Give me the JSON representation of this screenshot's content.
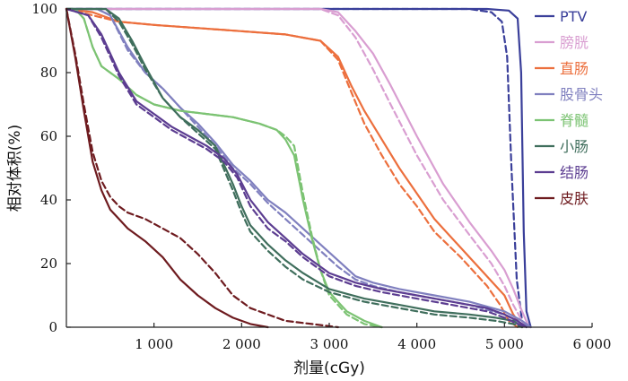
{
  "chart_data": {
    "type": "line",
    "xlabel": "剂量(cGy)",
    "ylabel": "相对体积(%)",
    "xlim": [
      0,
      6000
    ],
    "ylim": [
      0,
      100
    ],
    "xticks": [
      1000,
      2000,
      3000,
      4000,
      5000,
      6000
    ],
    "xtick_labels": [
      "1 000",
      "2 000",
      "3 000",
      "4 000",
      "5 000",
      "6 000"
    ],
    "yticks": [
      0,
      20,
      40,
      60,
      80,
      100
    ],
    "ytick_labels": [
      "0",
      "20",
      "40",
      "60",
      "80",
      "100"
    ],
    "grid": false,
    "legend_position": "right",
    "series": [
      {
        "name": "PTV",
        "color": "#3a3f9a",
        "solid": [
          [
            0,
            100
          ],
          [
            4800,
            100
          ],
          [
            5050,
            99.5
          ],
          [
            5150,
            97
          ],
          [
            5190,
            80
          ],
          [
            5220,
            30
          ],
          [
            5250,
            5
          ],
          [
            5300,
            0
          ]
        ],
        "dashed": [
          [
            0,
            100
          ],
          [
            4600,
            100
          ],
          [
            4850,
            99
          ],
          [
            4970,
            96
          ],
          [
            5030,
            85
          ],
          [
            5080,
            50
          ],
          [
            5140,
            15
          ],
          [
            5200,
            2
          ],
          [
            5250,
            0
          ]
        ]
      },
      {
        "name": "膀胱",
        "color": "#d99ed1",
        "solid": [
          [
            0,
            100
          ],
          [
            2900,
            100
          ],
          [
            3100,
            99
          ],
          [
            3300,
            93
          ],
          [
            3500,
            86
          ],
          [
            3700,
            76
          ],
          [
            4000,
            60
          ],
          [
            4300,
            45
          ],
          [
            4600,
            33
          ],
          [
            4850,
            24
          ],
          [
            5000,
            18
          ],
          [
            5100,
            12
          ],
          [
            5200,
            5
          ],
          [
            5280,
            0
          ]
        ],
        "dashed": [
          [
            0,
            100
          ],
          [
            2900,
            100
          ],
          [
            3100,
            98
          ],
          [
            3300,
            91
          ],
          [
            3500,
            81
          ],
          [
            3700,
            70
          ],
          [
            4000,
            54
          ],
          [
            4300,
            40
          ],
          [
            4600,
            29
          ],
          [
            4850,
            20
          ],
          [
            5000,
            13
          ],
          [
            5100,
            7
          ],
          [
            5200,
            2
          ],
          [
            5250,
            0
          ]
        ]
      },
      {
        "name": "直肠",
        "color": "#ec6f3d",
        "solid": [
          [
            0,
            100
          ],
          [
            300,
            99
          ],
          [
            600,
            96
          ],
          [
            1000,
            95
          ],
          [
            1500,
            94
          ],
          [
            2000,
            93
          ],
          [
            2500,
            92
          ],
          [
            2900,
            90
          ],
          [
            3100,
            85
          ],
          [
            3250,
            76
          ],
          [
            3400,
            68
          ],
          [
            3600,
            59
          ],
          [
            3800,
            50
          ],
          [
            4000,
            42
          ],
          [
            4200,
            34
          ],
          [
            4500,
            25
          ],
          [
            4800,
            16
          ],
          [
            5000,
            10
          ],
          [
            5100,
            4
          ],
          [
            5200,
            0
          ]
        ],
        "dashed": [
          [
            0,
            100
          ],
          [
            300,
            98
          ],
          [
            600,
            96
          ],
          [
            1000,
            95
          ],
          [
            1500,
            94
          ],
          [
            2000,
            93
          ],
          [
            2500,
            92
          ],
          [
            2900,
            90
          ],
          [
            3100,
            84
          ],
          [
            3250,
            74
          ],
          [
            3400,
            64
          ],
          [
            3600,
            54
          ],
          [
            3800,
            45
          ],
          [
            4000,
            38
          ],
          [
            4200,
            30
          ],
          [
            4500,
            22
          ],
          [
            4800,
            13
          ],
          [
            4950,
            7
          ],
          [
            5050,
            2
          ],
          [
            5150,
            0
          ]
        ]
      },
      {
        "name": "股骨头",
        "color": "#8080bf",
        "solid": [
          [
            0,
            100
          ],
          [
            350,
            100
          ],
          [
            500,
            98
          ],
          [
            700,
            88
          ],
          [
            900,
            80
          ],
          [
            1100,
            75
          ],
          [
            1300,
            69
          ],
          [
            1500,
            64
          ],
          [
            1700,
            58
          ],
          [
            1900,
            51
          ],
          [
            2100,
            46
          ],
          [
            2300,
            40
          ],
          [
            2500,
            36
          ],
          [
            2700,
            31
          ],
          [
            2900,
            26
          ],
          [
            3100,
            21
          ],
          [
            3300,
            16
          ],
          [
            3500,
            14
          ],
          [
            3800,
            12
          ],
          [
            4200,
            10
          ],
          [
            4600,
            8
          ],
          [
            5000,
            5
          ],
          [
            5200,
            2
          ],
          [
            5300,
            0
          ]
        ],
        "dashed": [
          [
            0,
            100
          ],
          [
            350,
            100
          ],
          [
            500,
            98
          ],
          [
            700,
            87
          ],
          [
            900,
            80
          ],
          [
            1100,
            75
          ],
          [
            1300,
            69
          ],
          [
            1500,
            63
          ],
          [
            1700,
            57
          ],
          [
            1900,
            50
          ],
          [
            2100,
            45
          ],
          [
            2300,
            39
          ],
          [
            2500,
            34
          ],
          [
            2700,
            29
          ],
          [
            2900,
            24
          ],
          [
            3100,
            19
          ],
          [
            3300,
            15
          ],
          [
            3500,
            13
          ],
          [
            3800,
            11
          ],
          [
            4200,
            9
          ],
          [
            4600,
            7
          ],
          [
            5000,
            4
          ],
          [
            5200,
            1
          ],
          [
            5300,
            0
          ]
        ]
      },
      {
        "name": "脊髓",
        "color": "#7cc373",
        "solid": [
          [
            0,
            100
          ],
          [
            100,
            100
          ],
          [
            200,
            97
          ],
          [
            300,
            88
          ],
          [
            400,
            82
          ],
          [
            600,
            78
          ],
          [
            800,
            73
          ],
          [
            1000,
            70
          ],
          [
            1300,
            68
          ],
          [
            1600,
            67
          ],
          [
            1900,
            66
          ],
          [
            2200,
            64
          ],
          [
            2400,
            62
          ],
          [
            2500,
            59
          ],
          [
            2600,
            54
          ],
          [
            2700,
            40
          ],
          [
            2800,
            28
          ],
          [
            2900,
            18
          ],
          [
            3000,
            11
          ],
          [
            3200,
            5
          ],
          [
            3400,
            2
          ],
          [
            3600,
            0
          ]
        ],
        "dashed": [
          [
            0,
            100
          ],
          [
            100,
            100
          ],
          [
            200,
            97
          ],
          [
            300,
            88
          ],
          [
            400,
            82
          ],
          [
            600,
            78
          ],
          [
            800,
            73
          ],
          [
            1000,
            70
          ],
          [
            1300,
            68
          ],
          [
            1600,
            67
          ],
          [
            1900,
            66
          ],
          [
            2200,
            64
          ],
          [
            2400,
            62
          ],
          [
            2500,
            60
          ],
          [
            2600,
            57
          ],
          [
            2700,
            42
          ],
          [
            2800,
            29
          ],
          [
            2900,
            18
          ],
          [
            3000,
            10
          ],
          [
            3200,
            4
          ],
          [
            3400,
            1
          ],
          [
            3600,
            0
          ]
        ]
      },
      {
        "name": "小肠",
        "color": "#3f6e5c",
        "solid": [
          [
            0,
            100
          ],
          [
            450,
            100
          ],
          [
            600,
            97
          ],
          [
            750,
            90
          ],
          [
            900,
            82
          ],
          [
            1100,
            72
          ],
          [
            1300,
            66
          ],
          [
            1500,
            62
          ],
          [
            1700,
            57
          ],
          [
            1900,
            45
          ],
          [
            2000,
            38
          ],
          [
            2100,
            32
          ],
          [
            2300,
            26
          ],
          [
            2500,
            21
          ],
          [
            2700,
            17
          ],
          [
            3000,
            12
          ],
          [
            3400,
            9
          ],
          [
            3800,
            7
          ],
          [
            4200,
            5
          ],
          [
            4600,
            4
          ],
          [
            4900,
            3
          ],
          [
            5100,
            2
          ],
          [
            5200,
            0
          ]
        ],
        "dashed": [
          [
            0,
            100
          ],
          [
            450,
            100
          ],
          [
            600,
            96
          ],
          [
            750,
            89
          ],
          [
            900,
            81
          ],
          [
            1100,
            72
          ],
          [
            1300,
            66
          ],
          [
            1500,
            61
          ],
          [
            1700,
            56
          ],
          [
            1900,
            43
          ],
          [
            2000,
            36
          ],
          [
            2100,
            30
          ],
          [
            2300,
            24
          ],
          [
            2500,
            19
          ],
          [
            2700,
            15
          ],
          [
            3000,
            11
          ],
          [
            3400,
            8
          ],
          [
            3800,
            6
          ],
          [
            4200,
            4
          ],
          [
            4600,
            3
          ],
          [
            4900,
            2
          ],
          [
            5100,
            1
          ],
          [
            5200,
            0
          ]
        ]
      },
      {
        "name": "结肠",
        "color": "#5c3d91",
        "solid": [
          [
            0,
            100
          ],
          [
            250,
            98
          ],
          [
            400,
            92
          ],
          [
            600,
            80
          ],
          [
            800,
            71
          ],
          [
            1000,
            67
          ],
          [
            1200,
            63
          ],
          [
            1400,
            60
          ],
          [
            1600,
            57
          ],
          [
            1800,
            53
          ],
          [
            1950,
            48
          ],
          [
            2100,
            40
          ],
          [
            2300,
            33
          ],
          [
            2500,
            28
          ],
          [
            2700,
            23
          ],
          [
            3000,
            17
          ],
          [
            3300,
            14
          ],
          [
            3600,
            12
          ],
          [
            4000,
            10
          ],
          [
            4400,
            8
          ],
          [
            4800,
            6
          ],
          [
            5000,
            4
          ],
          [
            5150,
            2
          ],
          [
            5250,
            0
          ]
        ],
        "dashed": [
          [
            0,
            100
          ],
          [
            250,
            98
          ],
          [
            400,
            91
          ],
          [
            600,
            79
          ],
          [
            800,
            70
          ],
          [
            1000,
            66
          ],
          [
            1200,
            62
          ],
          [
            1400,
            59
          ],
          [
            1600,
            56
          ],
          [
            1800,
            52
          ],
          [
            1950,
            47
          ],
          [
            2100,
            38
          ],
          [
            2300,
            31
          ],
          [
            2500,
            27
          ],
          [
            2700,
            22
          ],
          [
            3000,
            16
          ],
          [
            3300,
            13
          ],
          [
            3600,
            11
          ],
          [
            4000,
            9
          ],
          [
            4400,
            7
          ],
          [
            4800,
            5
          ],
          [
            5000,
            3
          ],
          [
            5150,
            1
          ],
          [
            5250,
            0
          ]
        ]
      },
      {
        "name": "皮肤",
        "color": "#6e1b1f",
        "solid": [
          [
            0,
            100
          ],
          [
            100,
            85
          ],
          [
            200,
            68
          ],
          [
            300,
            52
          ],
          [
            400,
            43
          ],
          [
            500,
            37
          ],
          [
            600,
            34
          ],
          [
            700,
            31
          ],
          [
            900,
            27
          ],
          [
            1100,
            22
          ],
          [
            1300,
            15
          ],
          [
            1500,
            10
          ],
          [
            1700,
            6
          ],
          [
            1900,
            3
          ],
          [
            2100,
            1
          ],
          [
            2300,
            0
          ]
        ],
        "dashed": [
          [
            0,
            100
          ],
          [
            100,
            86
          ],
          [
            200,
            70
          ],
          [
            300,
            55
          ],
          [
            400,
            46
          ],
          [
            500,
            41
          ],
          [
            600,
            38
          ],
          [
            700,
            36
          ],
          [
            900,
            34
          ],
          [
            1100,
            31
          ],
          [
            1300,
            28
          ],
          [
            1500,
            23
          ],
          [
            1700,
            17
          ],
          [
            1900,
            10
          ],
          [
            2100,
            6
          ],
          [
            2300,
            4
          ],
          [
            2500,
            2
          ],
          [
            2800,
            1
          ],
          [
            3100,
            0
          ]
        ]
      }
    ]
  }
}
